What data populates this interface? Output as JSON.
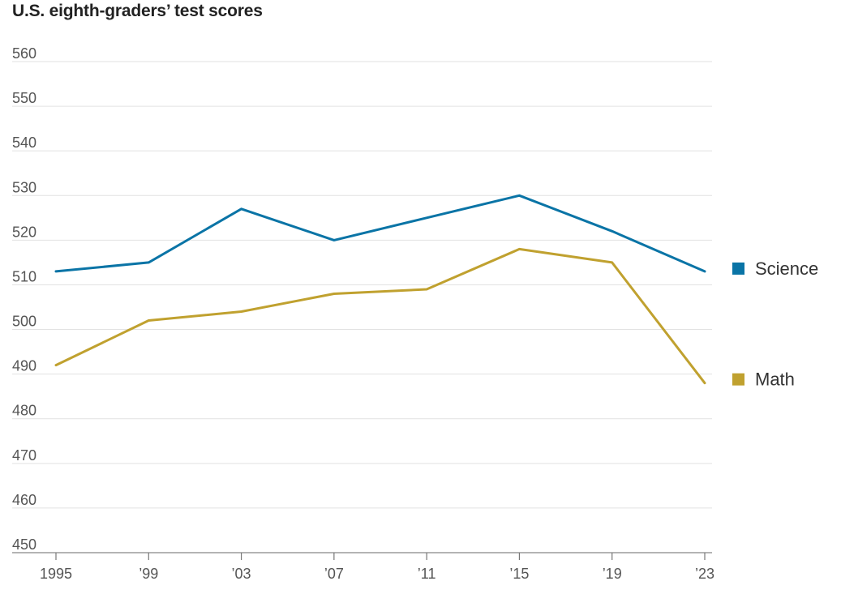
{
  "chart_data": {
    "type": "line",
    "title": "U.S. eighth-graders’ test scores",
    "xlabel": "",
    "ylabel": "",
    "categories": [
      "1995",
      "’99",
      "’03",
      "’07",
      "’11",
      "’15",
      "’19",
      "’23"
    ],
    "yticks": [
      "560",
      "550",
      "540",
      "530",
      "520",
      "510",
      "500",
      "490",
      "480",
      "470",
      "460",
      "450"
    ],
    "ylim": [
      450,
      560
    ],
    "grid": true,
    "legend_position": "right",
    "series": [
      {
        "name": "Science",
        "color": "#0a74a6",
        "values": [
          513,
          515,
          527,
          520,
          525,
          530,
          522,
          513
        ]
      },
      {
        "name": "Math",
        "color": "#c0a12f",
        "values": [
          492,
          502,
          504,
          508,
          509,
          518,
          515,
          488
        ]
      }
    ]
  }
}
